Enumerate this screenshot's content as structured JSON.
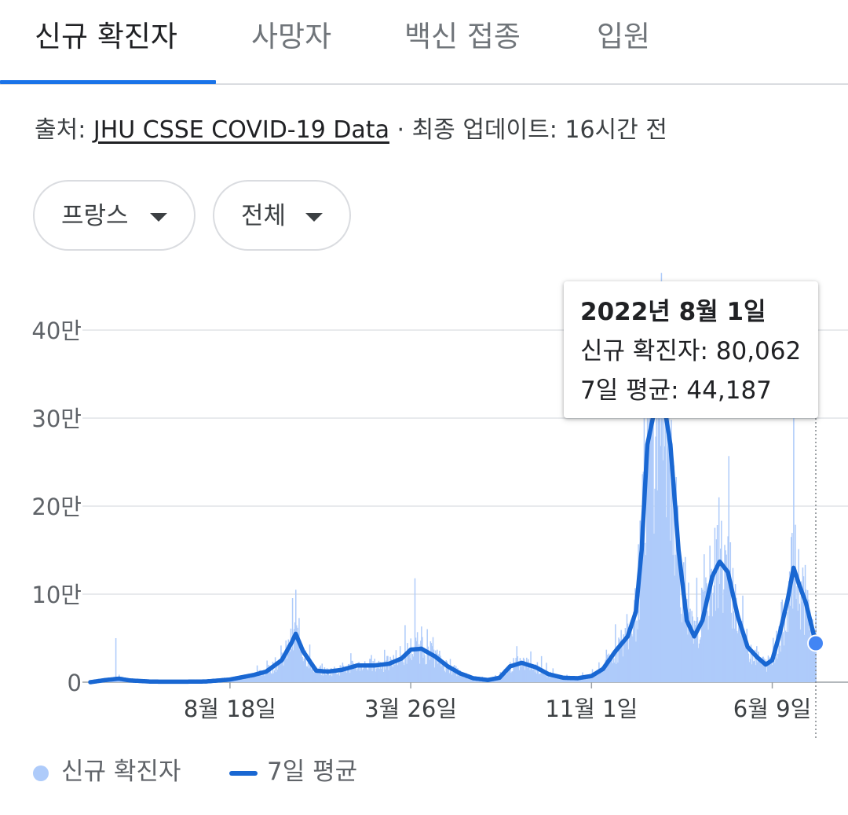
{
  "tabs": [
    {
      "label": "신규 확진자",
      "active": true
    },
    {
      "label": "사망자",
      "active": false
    },
    {
      "label": "백신 접종",
      "active": false
    },
    {
      "label": "입원",
      "active": false
    }
  ],
  "source": {
    "prefix": "출처:",
    "link_text": "JHU CSSE COVID-19 Data",
    "suffix": " · 최종 업데이트: 16시간 전"
  },
  "filters": {
    "country": "프랑스",
    "range": "전체"
  },
  "tooltip": {
    "date": "2022년 8월 1일",
    "cases_line": "신규 확진자: 80,062",
    "avg_line": "7일 평균: 44,187"
  },
  "legend": {
    "cases": "신규 확진자",
    "avg": "7일 평균"
  },
  "colors": {
    "accent": "#1a73e8",
    "bars": "#aecbfa",
    "avg_line": "#1967d2",
    "highlight_dot": "#4285f4"
  },
  "icons": {
    "dropdown": "caret-down-icon",
    "legend_cases": "dot-icon",
    "legend_avg": "line-icon"
  },
  "chart_data": {
    "type": "area",
    "title": "",
    "x_tick_labels": [
      "8월 18일",
      "3월 26일",
      "11월 1일",
      "6월 9일"
    ],
    "x_tick_dates": [
      "2020-08-18",
      "2021-03-26",
      "2021-11-01",
      "2022-06-09"
    ],
    "y_tick_labels": [
      "0",
      "10만",
      "20만",
      "30만",
      "40만"
    ],
    "ylim": [
      0,
      400000
    ],
    "xlim": [
      "2020-03-01",
      "2022-08-01"
    ],
    "grid": true,
    "legend_position": "bottom-left",
    "series": [
      {
        "name": "7일 평균",
        "kind": "line",
        "points": [
          [
            "2020-03-01",
            0
          ],
          [
            "2020-03-20",
            2500
          ],
          [
            "2020-04-05",
            4000
          ],
          [
            "2020-04-18",
            2000
          ],
          [
            "2020-05-15",
            600
          ],
          [
            "2020-06-20",
            500
          ],
          [
            "2020-07-20",
            800
          ],
          [
            "2020-08-18",
            3000
          ],
          [
            "2020-09-15",
            8000
          ],
          [
            "2020-10-01",
            12000
          ],
          [
            "2020-10-20",
            25000
          ],
          [
            "2020-11-01",
            45000
          ],
          [
            "2020-11-06",
            55000
          ],
          [
            "2020-11-15",
            35000
          ],
          [
            "2020-12-01",
            13000
          ],
          [
            "2020-12-15",
            12000
          ],
          [
            "2021-01-01",
            14000
          ],
          [
            "2021-01-20",
            19000
          ],
          [
            "2021-02-10",
            19000
          ],
          [
            "2021-02-28",
            21000
          ],
          [
            "2021-03-15",
            27000
          ],
          [
            "2021-03-26",
            37000
          ],
          [
            "2021-04-08",
            38000
          ],
          [
            "2021-04-25",
            29000
          ],
          [
            "2021-05-10",
            18000
          ],
          [
            "2021-05-25",
            10000
          ],
          [
            "2021-06-10",
            4500
          ],
          [
            "2021-06-28",
            2500
          ],
          [
            "2021-07-12",
            5000
          ],
          [
            "2021-07-25",
            18000
          ],
          [
            "2021-08-08",
            22000
          ],
          [
            "2021-08-25",
            17000
          ],
          [
            "2021-09-10",
            9000
          ],
          [
            "2021-09-28",
            5000
          ],
          [
            "2021-10-15",
            4500
          ],
          [
            "2021-11-01",
            7000
          ],
          [
            "2021-11-15",
            15000
          ],
          [
            "2021-11-30",
            35000
          ],
          [
            "2021-12-15",
            52000
          ],
          [
            "2021-12-25",
            80000
          ],
          [
            "2022-01-01",
            150000
          ],
          [
            "2022-01-08",
            270000
          ],
          [
            "2022-01-18",
            315000
          ],
          [
            "2022-01-26",
            330000
          ],
          [
            "2022-02-05",
            270000
          ],
          [
            "2022-02-15",
            150000
          ],
          [
            "2022-02-25",
            70000
          ],
          [
            "2022-03-06",
            52000
          ],
          [
            "2022-03-16",
            70000
          ],
          [
            "2022-03-28",
            120000
          ],
          [
            "2022-04-06",
            137000
          ],
          [
            "2022-04-16",
            125000
          ],
          [
            "2022-04-28",
            75000
          ],
          [
            "2022-05-10",
            40000
          ],
          [
            "2022-05-22",
            28000
          ],
          [
            "2022-06-01",
            20000
          ],
          [
            "2022-06-09",
            25000
          ],
          [
            "2022-06-18",
            55000
          ],
          [
            "2022-06-28",
            95000
          ],
          [
            "2022-07-05",
            130000
          ],
          [
            "2022-07-12",
            110000
          ],
          [
            "2022-07-20",
            90000
          ],
          [
            "2022-08-01",
            44187
          ]
        ]
      },
      {
        "name": "신규 확진자",
        "kind": "bars",
        "notable_values": [
          {
            "date": "2020-04-01",
            "value": 50000
          },
          {
            "date": "2020-11-06",
            "value": 105000
          },
          {
            "date": "2021-03-31",
            "value": 118000
          },
          {
            "date": "2022-01-25",
            "value": 465000
          },
          {
            "date": "2022-04-05",
            "value": 210000
          },
          {
            "date": "2022-07-05",
            "value": 300000
          },
          {
            "date": "2022-08-01",
            "value": 80062
          }
        ]
      }
    ],
    "highlight": {
      "date": "2022-08-01",
      "cases": 80062,
      "avg": 44187
    }
  }
}
